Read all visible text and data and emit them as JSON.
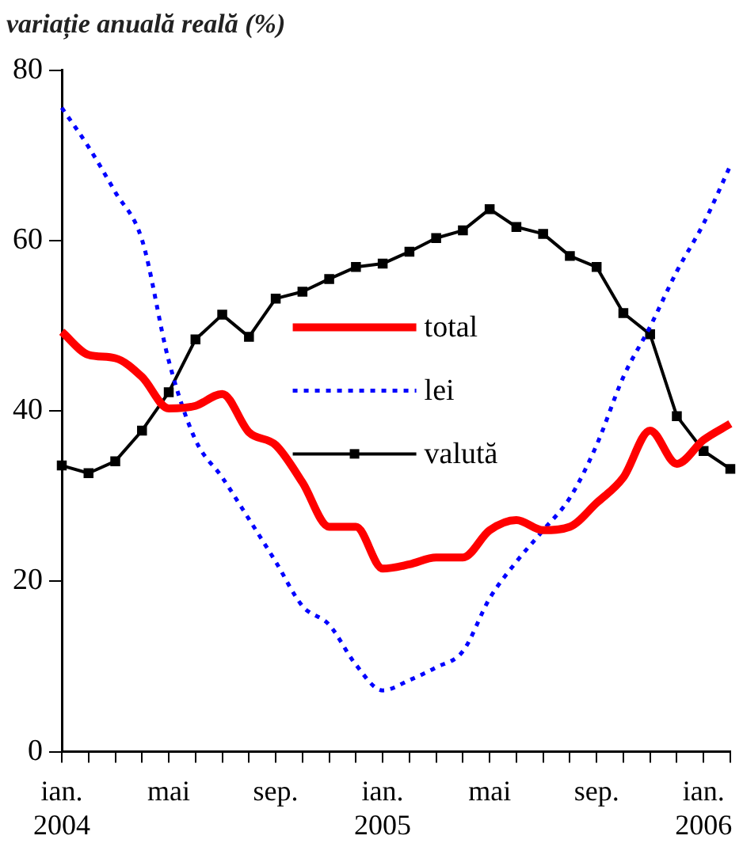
{
  "chart_data": {
    "type": "line",
    "ylabel": "variație anuală reală (%)",
    "categories": [
      "ian.\n2004",
      null,
      null,
      null,
      "mai",
      null,
      null,
      null,
      "sep.",
      null,
      null,
      null,
      "ian.\n2005",
      null,
      null,
      null,
      "mai",
      null,
      null,
      null,
      "sep.",
      null,
      null,
      null,
      "ian.\n2006",
      null
    ],
    "series": [
      {
        "name": "total",
        "color": "#ff0000",
        "line_style": "solid",
        "marker": "none",
        "values": [
          49.3,
          46.6,
          46.2,
          44.0,
          40.3,
          40.6,
          42.0,
          37.5,
          36.0,
          31.6,
          26.4,
          26.4,
          21.5,
          22.0,
          22.8,
          22.8,
          26.0,
          27.2,
          26.0,
          26.4,
          29.2,
          32.2,
          37.7,
          33.8,
          36.6,
          38.5
        ]
      },
      {
        "name": "lei",
        "color": "#0000ff",
        "line_style": "dotted",
        "marker": "none",
        "values": [
          75.6,
          71.0,
          65.7,
          60.1,
          45.9,
          36.6,
          32.2,
          27.3,
          22.3,
          17.1,
          14.9,
          10.2,
          7.2,
          8.4,
          9.9,
          11.8,
          18.0,
          22.3,
          26.0,
          29.8,
          36.0,
          44.0,
          49.9,
          56.4,
          62.0,
          68.8
        ]
      },
      {
        "name": "valută",
        "color": "#000000",
        "line_style": "solid",
        "marker": "square",
        "values": [
          33.6,
          32.7,
          34.1,
          37.7,
          42.2,
          48.4,
          51.3,
          48.7,
          53.2,
          54.0,
          55.5,
          56.9,
          57.3,
          58.7,
          60.3,
          61.2,
          63.7,
          61.6,
          60.8,
          58.2,
          56.9,
          51.5,
          49.0,
          39.4,
          35.3,
          33.2
        ]
      }
    ],
    "ylim": [
      0,
      80
    ],
    "yticks": [
      0,
      20,
      40,
      60,
      80
    ],
    "legend": "center"
  }
}
